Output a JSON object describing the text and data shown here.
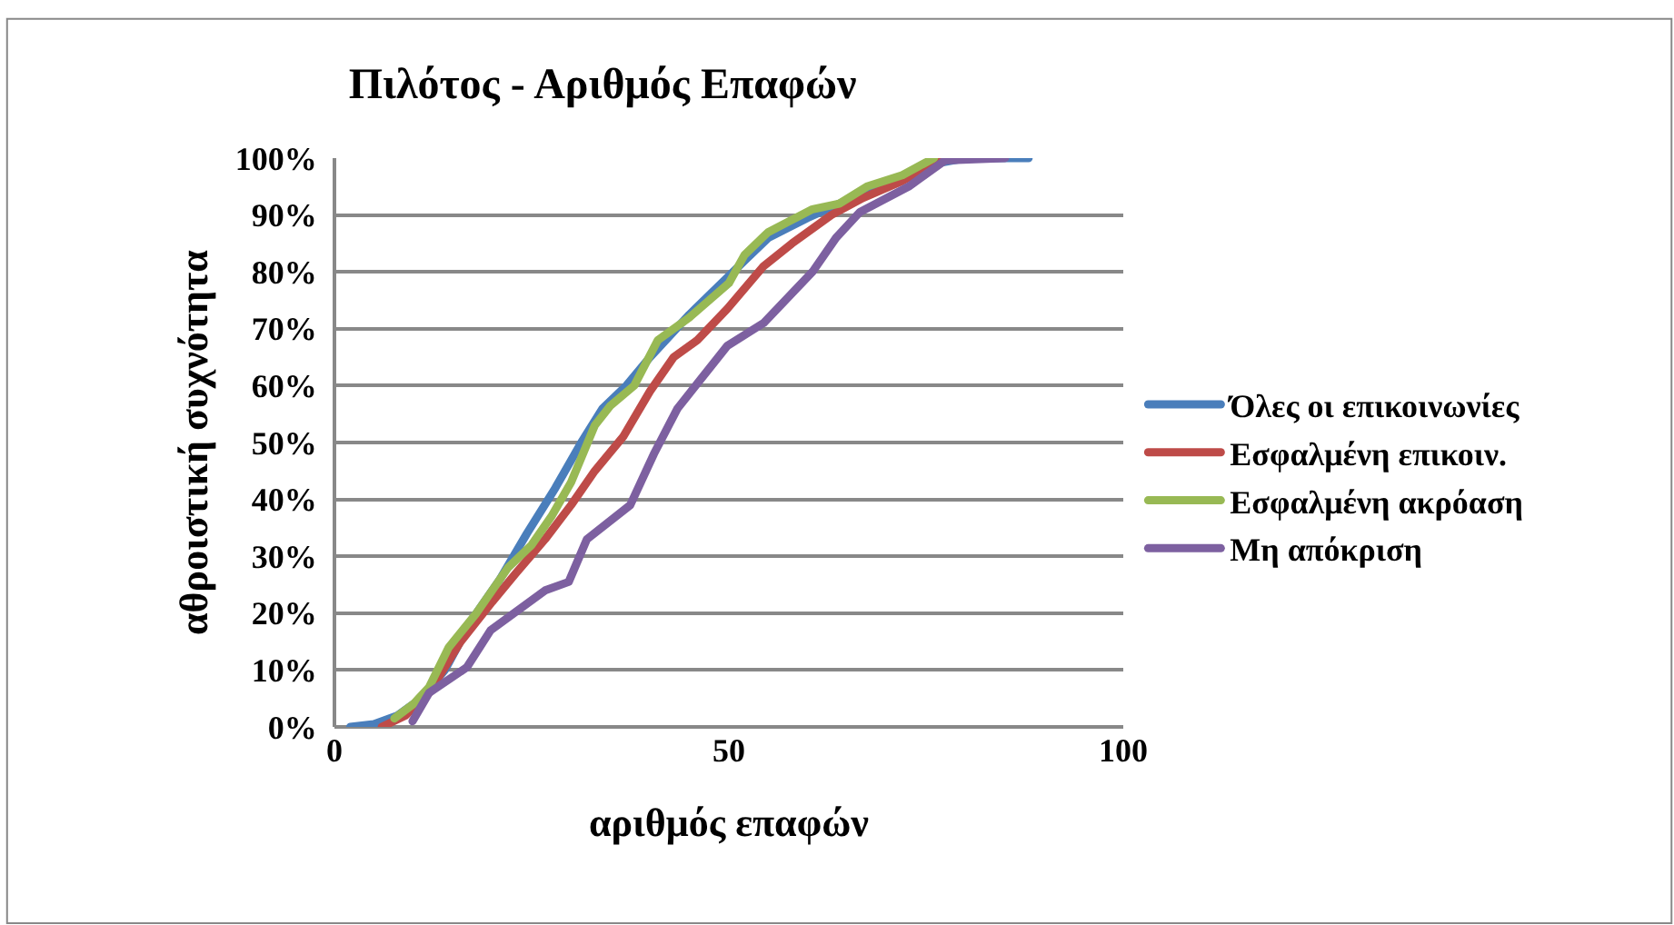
{
  "chart_data": {
    "type": "line",
    "title": "Πιλότος - Αριθμός Επαφών",
    "xlabel": "αριθμός επαφών",
    "ylabel": "αθροιστική συχνότητα",
    "xlim": [
      0,
      100
    ],
    "xticks": [
      0,
      50,
      100
    ],
    "ylim": [
      0,
      100
    ],
    "yticks": [
      {
        "value": 0,
        "label": "0%"
      },
      {
        "value": 10,
        "label": "10%"
      },
      {
        "value": 20,
        "label": "20%"
      },
      {
        "value": 30,
        "label": "30%"
      },
      {
        "value": 40,
        "label": "40%"
      },
      {
        "value": 50,
        "label": "50%"
      },
      {
        "value": 60,
        "label": "60%"
      },
      {
        "value": 70,
        "label": "70%"
      },
      {
        "value": 80,
        "label": "80%"
      },
      {
        "value": 90,
        "label": "90%"
      },
      {
        "value": 100,
        "label": "100%"
      }
    ],
    "grid": "y",
    "legend": "right",
    "marker": "none",
    "line_style": "solid",
    "series": [
      {
        "name": "Όλες οι επικοινωνίες",
        "color": "#4a7ebb",
        "x": [
          2,
          5,
          8,
          11,
          14,
          17.5,
          21,
          24.4,
          28,
          31.3,
          34,
          37,
          40,
          45,
          49.8,
          52,
          55,
          60,
          64,
          70,
          76,
          80,
          88
        ],
        "values": [
          0,
          0.5,
          2,
          5,
          10,
          19,
          26,
          34,
          42,
          50,
          56,
          60,
          65,
          72.5,
          79,
          82,
          86,
          89.5,
          92,
          95.5,
          99,
          100,
          100
        ]
      },
      {
        "name": "Εσφαλμένη επικοιν.",
        "color": "#be4b48",
        "x": [
          6,
          9,
          12,
          16,
          20,
          23,
          26.7,
          30,
          33,
          36.6,
          40,
          43,
          46,
          49.8,
          54.4,
          58,
          63,
          67,
          72,
          77.4
        ],
        "values": [
          0,
          2,
          6,
          15,
          22,
          27,
          33,
          39,
          45,
          51,
          59,
          65,
          68,
          73.5,
          81,
          85,
          90,
          93,
          96,
          100
        ]
      },
      {
        "name": "Εσφαλμένη ακρόαση",
        "color": "#98b954",
        "x": [
          7.6,
          10,
          12,
          14.5,
          18,
          22,
          25,
          27.5,
          30,
          33,
          35,
          38,
          41,
          45,
          50,
          52,
          55,
          60.6,
          64,
          67.5,
          72,
          76
        ],
        "values": [
          1.5,
          4,
          7,
          14,
          20,
          28,
          32,
          37,
          43,
          53,
          56.5,
          60,
          68,
          72,
          78,
          83,
          87,
          91,
          92,
          95,
          97,
          100
        ]
      },
      {
        "name": "Μη απόκριση",
        "color": "#7d60a0",
        "x": [
          9.9,
          12,
          16.8,
          19.8,
          26.7,
          29.7,
          32,
          37.5,
          40.5,
          43.5,
          49.8,
          54.4,
          60.6,
          63.6,
          66.6,
          72.8,
          77.4,
          85
        ],
        "values": [
          1,
          6,
          10.5,
          17,
          24,
          25.5,
          33,
          39,
          48,
          56,
          67,
          71,
          80,
          86,
          90.5,
          95,
          99.6,
          100
        ]
      }
    ]
  }
}
